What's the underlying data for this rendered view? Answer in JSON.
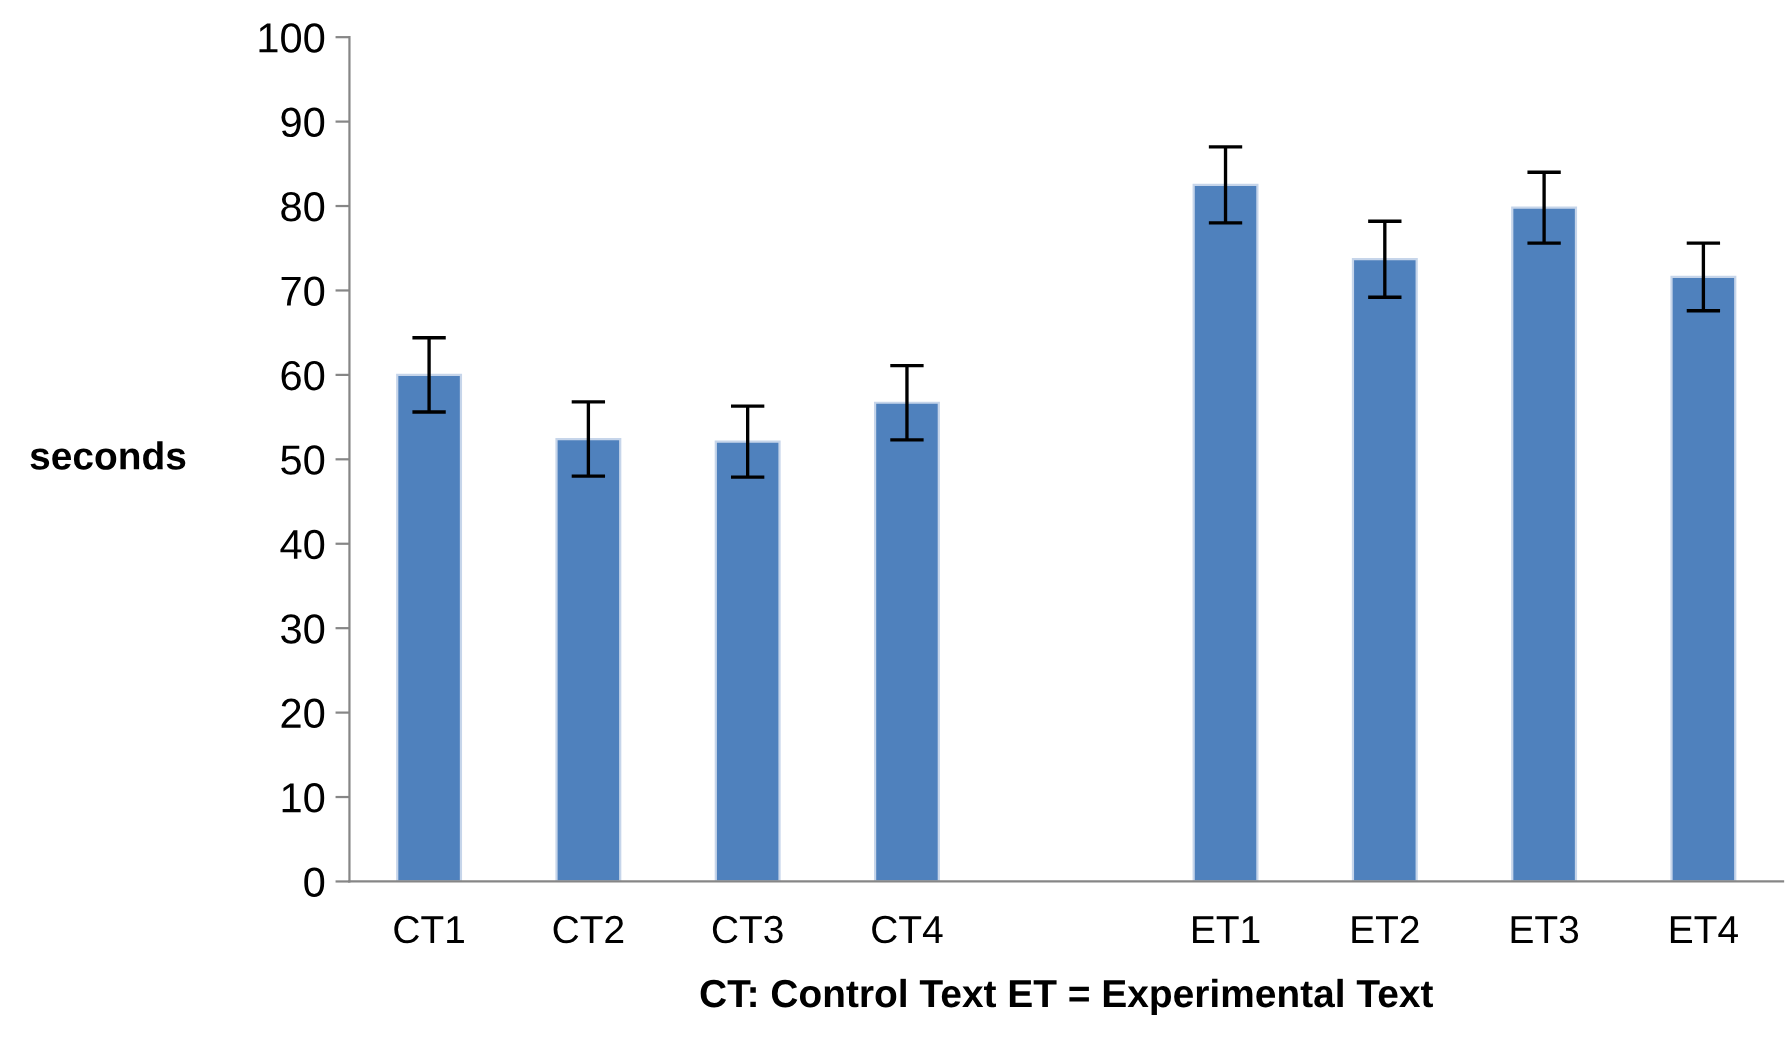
{
  "chart_data": {
    "type": "bar",
    "xlabel": "CT: Control Text ET = Experimental Text",
    "ylabel": "seconds",
    "categories": [
      "CT1",
      "CT2",
      "CT3",
      "CT4",
      null,
      "ET1",
      "ET2",
      "ET3",
      "ET4"
    ],
    "values": [
      60.0,
      52.4,
      52.1,
      56.7,
      null,
      82.5,
      73.7,
      79.8,
      71.6
    ],
    "errors": [
      4.4,
      4.4,
      4.2,
      4.4,
      null,
      4.5,
      4.5,
      4.2,
      4.0
    ],
    "color": "#4f81bd",
    "ylim": [
      0,
      100
    ],
    "yticks": [
      0,
      10,
      20,
      30,
      40,
      50,
      60,
      70,
      80,
      90,
      100
    ],
    "grid": false,
    "legend": false
  }
}
